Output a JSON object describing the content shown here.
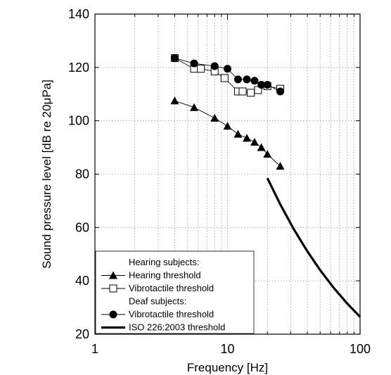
{
  "chart_data": {
    "type": "line",
    "xscale": "log",
    "xlim": [
      1,
      100
    ],
    "ylim": [
      20,
      140
    ],
    "xticks": [
      1,
      10,
      100
    ],
    "yticks": [
      20,
      40,
      60,
      80,
      100,
      120,
      140
    ],
    "xlabel": "Frequency [Hz]",
    "ylabel": "Sound pressure level [dB re 20μPa]",
    "grid": true,
    "legend_position": "bottom-left",
    "legend": [
      {
        "kind": "header",
        "text": "Hearing subjects:"
      },
      {
        "kind": "series",
        "series": 0,
        "text": "Hearing threshold"
      },
      {
        "kind": "series",
        "series": 1,
        "text": "Vibrotactile threshold"
      },
      {
        "kind": "header",
        "text": "Deaf subjects:"
      },
      {
        "kind": "series",
        "series": 2,
        "text": "Vibrotactile threshold"
      },
      {
        "kind": "series",
        "series": 3,
        "text": "ISO 226:2003 threshold"
      }
    ],
    "series": [
      {
        "marker": "triangle",
        "color": "#000000",
        "x": [
          4,
          5.6,
          8,
          10,
          12,
          14,
          16,
          18,
          20,
          25
        ],
        "y": [
          107.5,
          105,
          101,
          98,
          95,
          93.5,
          92,
          90,
          87.5,
          83
        ]
      },
      {
        "marker": "square-open",
        "color": "#000000",
        "x": [
          4,
          5.6,
          6.3,
          8,
          9.5,
          12,
          13,
          15,
          17,
          20,
          25
        ],
        "y": [
          123.5,
          119.5,
          119.5,
          118.5,
          116,
          111,
          111,
          110.5,
          111.5,
          113,
          112
        ]
      },
      {
        "marker": "circle",
        "color": "#000000",
        "x": [
          4,
          5.6,
          8,
          10,
          12,
          14,
          16,
          18,
          20,
          25
        ],
        "y": [
          123.5,
          121.5,
          120.5,
          119.5,
          115.5,
          115.5,
          115,
          113.5,
          113.5,
          111
        ]
      },
      {
        "marker": "none",
        "color": "#000000",
        "line_width": "thick",
        "x": [
          20,
          25,
          31.5,
          40,
          50,
          63,
          80,
          100
        ],
        "y": [
          78.5,
          68.7,
          59.5,
          51.1,
          44,
          37.5,
          31.5,
          26.5
        ]
      }
    ]
  }
}
